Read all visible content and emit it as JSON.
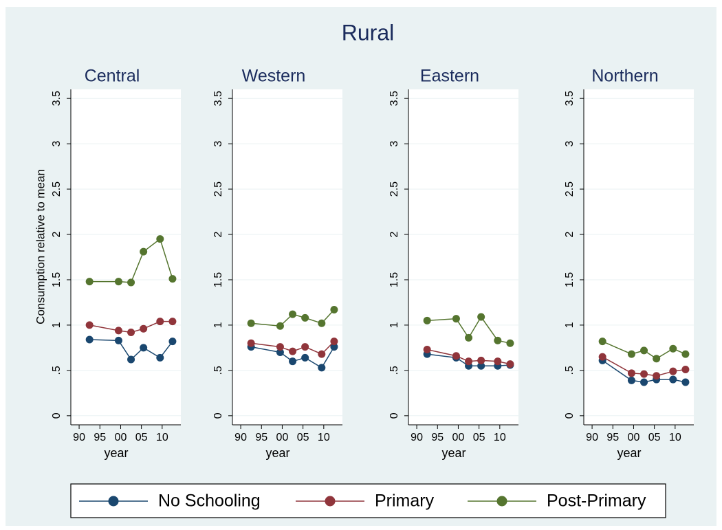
{
  "title": "Rural",
  "legend": [
    {
      "name": "No Schooling",
      "color": "#1a476f"
    },
    {
      "name": "Primary",
      "color": "#90353b"
    },
    {
      "name": "Post-Primary",
      "color": "#55752f"
    }
  ],
  "chart_data": [
    {
      "type": "line",
      "title": "Central",
      "xlabel": "year",
      "ylabel": "Consumption relative to mean",
      "x": [
        1992.5,
        1999.5,
        2002.5,
        2005.5,
        2009.5,
        2012.5
      ],
      "series": [
        {
          "values": [
            0.84,
            0.83,
            0.62,
            0.75,
            0.64,
            0.82
          ]
        },
        {
          "values": [
            1.0,
            0.94,
            0.92,
            0.96,
            1.04,
            1.04
          ]
        },
        {
          "values": [
            1.48,
            1.48,
            1.47,
            1.81,
            1.95,
            1.51
          ]
        }
      ],
      "xlim": [
        1988,
        2014.5
      ],
      "xticks": [
        {
          "value": 1990,
          "label": "90"
        },
        {
          "value": 1995,
          "label": "95"
        },
        {
          "value": 2000,
          "label": "00"
        },
        {
          "value": 2005,
          "label": "05"
        },
        {
          "value": 2010,
          "label": "10"
        }
      ],
      "ylim": [
        -0.1,
        3.6
      ],
      "yticks": [
        0,
        {
          "value": 0.5,
          "label": ".5"
        },
        1,
        1.5,
        2,
        2.5,
        3,
        3.5
      ],
      "grid": true
    },
    {
      "type": "line",
      "title": "Western",
      "xlabel": "year",
      "x": [
        1992.5,
        1999.5,
        2002.5,
        2005.5,
        2009.5,
        2012.5
      ],
      "series": [
        {
          "values": [
            0.76,
            0.7,
            0.6,
            0.64,
            0.53,
            0.76
          ]
        },
        {
          "values": [
            0.8,
            0.76,
            0.71,
            0.76,
            0.68,
            0.82
          ]
        },
        {
          "values": [
            1.02,
            0.99,
            1.12,
            1.08,
            1.02,
            1.17
          ]
        }
      ],
      "xlim": [
        1988,
        2014.5
      ],
      "xticks": [
        {
          "value": 1990,
          "label": "90"
        },
        {
          "value": 1995,
          "label": "95"
        },
        {
          "value": 2000,
          "label": "00"
        },
        {
          "value": 2005,
          "label": "05"
        },
        {
          "value": 2010,
          "label": "10"
        }
      ],
      "ylim": [
        -0.1,
        3.6
      ],
      "yticks": [
        0,
        {
          "value": 0.5,
          "label": ".5"
        },
        1,
        1.5,
        2,
        2.5,
        3,
        3.5
      ],
      "grid": true
    },
    {
      "type": "line",
      "title": "Eastern",
      "xlabel": "year",
      "x": [
        1992.5,
        1999.5,
        2002.5,
        2005.5,
        2009.5,
        2012.5
      ],
      "series": [
        {
          "values": [
            0.68,
            0.64,
            0.55,
            0.55,
            0.55,
            0.56
          ]
        },
        {
          "values": [
            0.73,
            0.66,
            0.6,
            0.61,
            0.6,
            0.57
          ]
        },
        {
          "values": [
            1.05,
            1.07,
            0.86,
            1.09,
            0.83,
            0.8
          ]
        }
      ],
      "xlim": [
        1988,
        2014.5
      ],
      "xticks": [
        {
          "value": 1990,
          "label": "90"
        },
        {
          "value": 1995,
          "label": "95"
        },
        {
          "value": 2000,
          "label": "00"
        },
        {
          "value": 2005,
          "label": "05"
        },
        {
          "value": 2010,
          "label": "10"
        }
      ],
      "ylim": [
        -0.1,
        3.6
      ],
      "yticks": [
        0,
        {
          "value": 0.5,
          "label": ".5"
        },
        1,
        1.5,
        2,
        2.5,
        3,
        3.5
      ],
      "grid": true
    },
    {
      "type": "line",
      "title": "Northern",
      "xlabel": "year",
      "x": [
        1992.5,
        1999.5,
        2002.5,
        2005.5,
        2009.5,
        2012.5
      ],
      "series": [
        {
          "values": [
            0.61,
            0.39,
            0.37,
            0.4,
            0.4,
            0.37
          ]
        },
        {
          "values": [
            0.65,
            0.47,
            0.46,
            0.44,
            0.49,
            0.51
          ]
        },
        {
          "values": [
            0.82,
            0.68,
            0.72,
            0.63,
            0.74,
            0.68
          ]
        }
      ],
      "xlim": [
        1988,
        2014.5
      ],
      "xticks": [
        {
          "value": 1990,
          "label": "90"
        },
        {
          "value": 1995,
          "label": "95"
        },
        {
          "value": 2000,
          "label": "00"
        },
        {
          "value": 2005,
          "label": "05"
        },
        {
          "value": 2010,
          "label": "10"
        }
      ],
      "ylim": [
        -0.1,
        3.6
      ],
      "yticks": [
        0,
        {
          "value": 0.5,
          "label": ".5"
        },
        1,
        1.5,
        2,
        2.5,
        3,
        3.5
      ],
      "grid": true
    }
  ]
}
